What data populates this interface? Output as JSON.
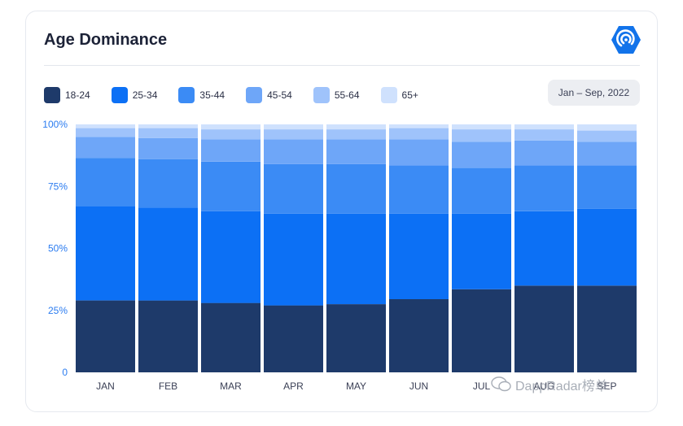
{
  "header": {
    "title": "Age Dominance"
  },
  "date_range": "Jan – Sep, 2022",
  "watermark": "DappRadar榜单",
  "colors": {
    "18-24": "#1e3a6a",
    "25-34": "#0c70f5",
    "35-44": "#3b8bf5",
    "45-54": "#6ea6f8",
    "55-64": "#9fc3fb",
    "65+": "#cfe1fd"
  },
  "chart_data": {
    "type": "bar",
    "stacked": true,
    "categories": [
      "JAN",
      "FEB",
      "MAR",
      "APR",
      "MAY",
      "JUN",
      "JUL",
      "AUG",
      "SEP"
    ],
    "series": [
      {
        "name": "18-24",
        "values": [
          29,
          29,
          28,
          27,
          27.5,
          29.5,
          33.5,
          35,
          35
        ]
      },
      {
        "name": "25-34",
        "values": [
          38,
          37.5,
          37,
          37,
          36.5,
          34.5,
          30.5,
          30,
          31
        ]
      },
      {
        "name": "35-44",
        "values": [
          19.5,
          19.5,
          20,
          20,
          20,
          19.5,
          18.5,
          18.5,
          17.5
        ]
      },
      {
        "name": "45-54",
        "values": [
          8.5,
          8.5,
          9,
          10,
          10,
          10.5,
          10.5,
          10,
          9.5
        ]
      },
      {
        "name": "55-64",
        "values": [
          3.5,
          4,
          4,
          4,
          4,
          4.5,
          5,
          4.5,
          4.5
        ]
      },
      {
        "name": "65+",
        "values": [
          1.5,
          1.5,
          2,
          2,
          2,
          1.5,
          2,
          2,
          2.5
        ]
      }
    ],
    "yticks": [
      "0",
      "25%",
      "50%",
      "75%",
      "100%"
    ],
    "ylim": [
      0,
      100
    ]
  }
}
